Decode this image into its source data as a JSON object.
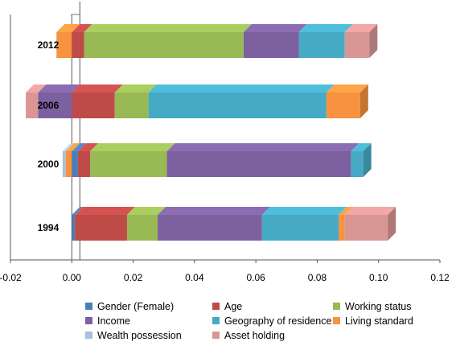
{
  "chart_data": {
    "type": "bar",
    "orientation": "horizontal",
    "stacked": true,
    "three_d": true,
    "categories": [
      "2012",
      "2006",
      "2000",
      "1994"
    ],
    "xlim": [
      -0.02,
      0.12
    ],
    "x_ticks": [
      "-0.02",
      "0.00",
      "0.02",
      "0.04",
      "0.06",
      "0.08",
      "0.10",
      "0.12"
    ],
    "legend_position": "bottom",
    "series": [
      {
        "name": "Gender (Female)",
        "color": "#4A7EBB",
        "values": [
          0.0,
          0.0,
          0.002,
          0.001
        ]
      },
      {
        "name": "Age",
        "color": "#BE4B48",
        "values": [
          0.004,
          0.014,
          0.004,
          0.017
        ]
      },
      {
        "name": "Working status",
        "color": "#98B954",
        "values": [
          0.052,
          0.011,
          0.025,
          0.01
        ]
      },
      {
        "name": "Income",
        "color": "#7D60A0",
        "values": [
          0.018,
          -0.011,
          0.06,
          0.034
        ]
      },
      {
        "name": "Geography of residence",
        "color": "#46AAC5",
        "values": [
          0.015,
          0.058,
          0.004,
          0.025
        ]
      },
      {
        "name": "Living standard",
        "color": "#F69240",
        "values": [
          -0.005,
          0.011,
          -0.002,
          0.002
        ]
      },
      {
        "name": "Wealth possession",
        "color": "#A7C0DE",
        "values": [
          0.0,
          0.0,
          -0.001,
          0.0
        ]
      },
      {
        "name": "Asset holding",
        "color": "#D99694",
        "values": [
          0.008,
          -0.004,
          0.0,
          0.014
        ]
      }
    ]
  }
}
